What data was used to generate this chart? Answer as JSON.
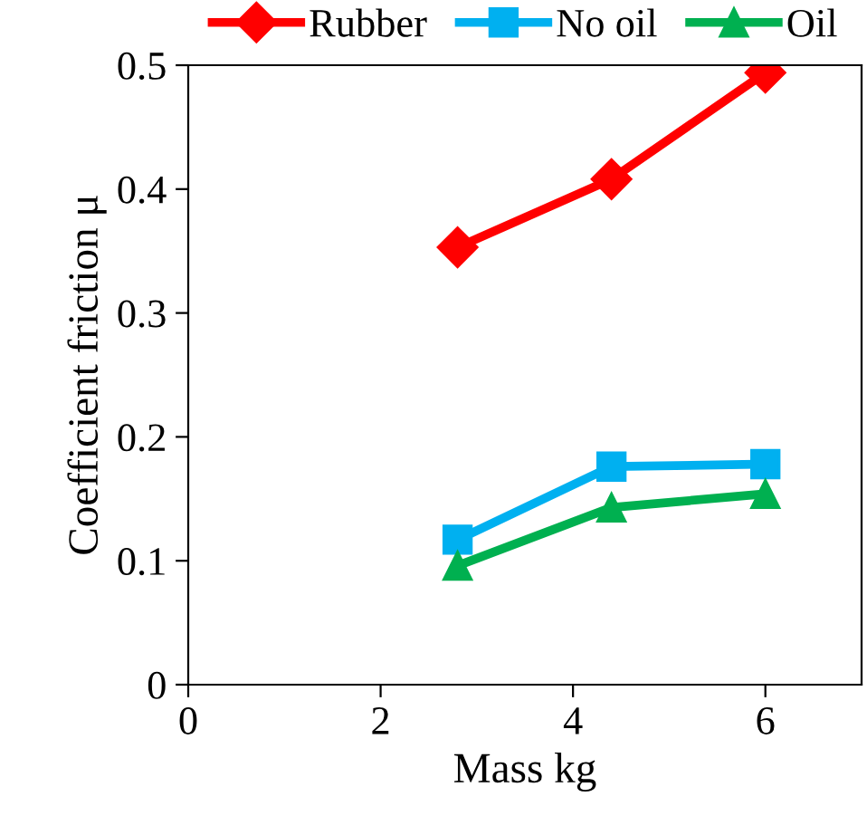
{
  "chart_data": {
    "type": "line",
    "xlabel": "Mass kg",
    "ylabel": "Coefficient friction μ",
    "x": [
      2.8,
      4.4,
      6
    ],
    "series": [
      {
        "name": "Rubber",
        "color": "#ff0000",
        "marker": "diamond",
        "values": [
          0.353,
          0.408,
          0.494
        ]
      },
      {
        "name": "No oil",
        "color": "#00b0f0",
        "marker": "square",
        "values": [
          0.117,
          0.176,
          0.178
        ]
      },
      {
        "name": "Oil",
        "color": "#00b050",
        "marker": "triangle",
        "values": [
          0.096,
          0.143,
          0.154
        ]
      }
    ],
    "xlim": [
      0,
      7
    ],
    "xticks": [
      0,
      2,
      4,
      6
    ],
    "ylim": [
      0,
      0.5
    ],
    "yticks": [
      0,
      0.1,
      0.2,
      0.3,
      0.4,
      0.5
    ],
    "grid": false,
    "legend": "top",
    "line_style": "solid"
  }
}
